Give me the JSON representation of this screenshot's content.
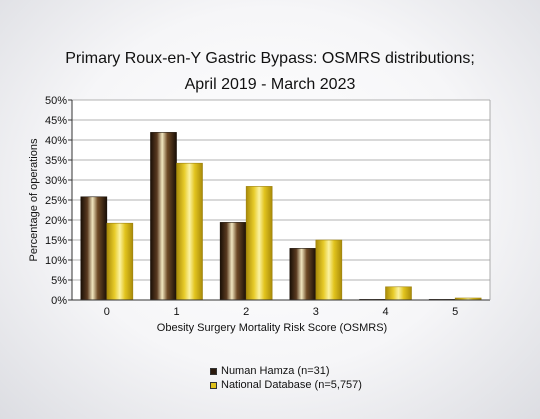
{
  "chart_data": {
    "type": "bar",
    "title": [
      "Primary Roux-en-Y Gastric Bypass: OSMRS distributions;",
      "April 2019 - March 2023"
    ],
    "xlabel": "Obesity Surgery Mortality Risk Score (OSMRS)",
    "ylabel": "Percentage of operations",
    "categories": [
      "0",
      "1",
      "2",
      "3",
      "4",
      "5"
    ],
    "ylim": [
      0,
      50
    ],
    "yticks": [
      "0%",
      "5%",
      "10%",
      "15%",
      "20%",
      "25%",
      "30%",
      "35%",
      "40%",
      "45%",
      "50%"
    ],
    "grid": true,
    "legend_position": "bottom",
    "series": [
      {
        "name": "Numan Hamza (n=31)",
        "values": [
          25.8,
          41.9,
          19.4,
          12.9,
          0.1,
          0.1
        ],
        "color": "#2b1a0e"
      },
      {
        "name": "National Database (n=5,757)",
        "values": [
          19.2,
          34.2,
          28.4,
          15.0,
          3.3,
          0.5
        ],
        "color": "#e0c21c"
      }
    ]
  }
}
